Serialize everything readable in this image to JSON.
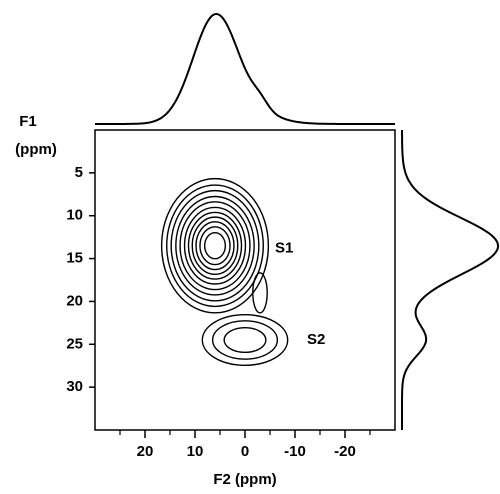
{
  "chart_data": {
    "type": "contour",
    "x_label": "F2 (ppm)",
    "y_label_lines": [
      "F1",
      "(ppm)"
    ],
    "xlim": [
      30,
      -30
    ],
    "ylim": [
      0,
      35
    ],
    "xticks": [
      20,
      10,
      0,
      -10,
      -20
    ],
    "xminorticks": [
      25,
      15,
      5,
      -5,
      -15,
      -25
    ],
    "yticks": [
      5,
      10,
      15,
      20,
      25,
      30
    ],
    "levels": [
      0.06,
      0.1,
      0.15,
      0.22,
      0.3,
      0.4,
      0.5,
      0.6,
      0.7,
      0.8,
      0.9
    ],
    "peaks": [
      {
        "name": "S1",
        "f2": 6,
        "f1": 13.5,
        "width_f2": 4.5,
        "width_f1": 3.3,
        "amplitude": 1
      },
      {
        "name": "S2",
        "f2": 0,
        "f1": 24.5,
        "width_f2": 5.5,
        "width_f1": 1.9,
        "amplitude": 0.2
      },
      {
        "f2": -3,
        "f1": 19,
        "width_f2": 1.6,
        "width_f1": 2.6,
        "amplitude": 0.09
      }
    ],
    "color": "#000000"
  }
}
